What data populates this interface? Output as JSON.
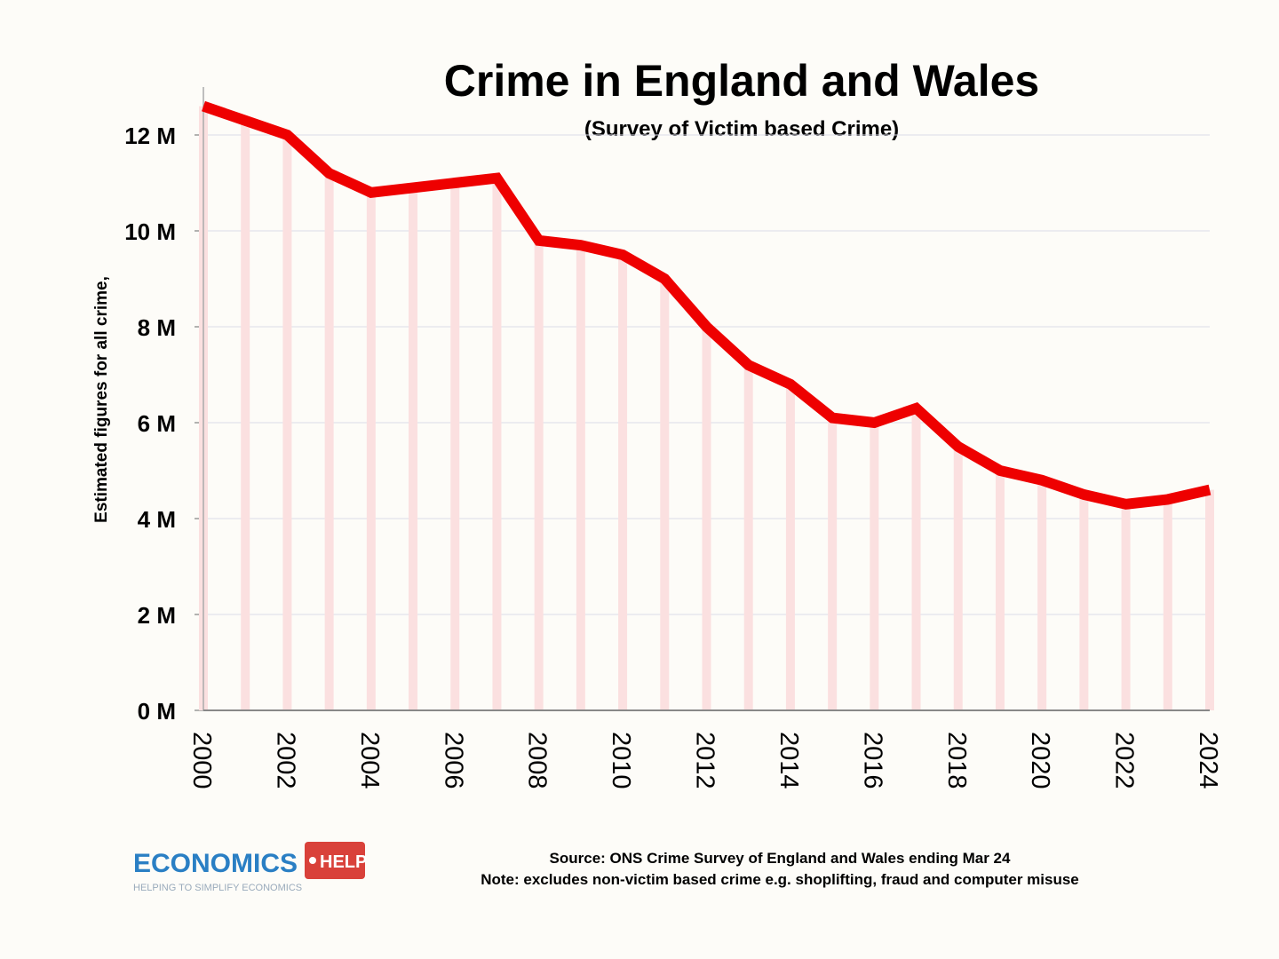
{
  "chart_data": {
    "type": "line",
    "title": "Crime in England and Wales",
    "subtitle": "(Survey of Victim based Crime)",
    "y_label": "Estimated figures for all crime,",
    "x": [
      2000,
      2001,
      2002,
      2003,
      2004,
      2005,
      2006,
      2007,
      2008,
      2009,
      2010,
      2011,
      2012,
      2013,
      2014,
      2015,
      2016,
      2017,
      2018,
      2019,
      2020,
      2021,
      2022,
      2023,
      2024
    ],
    "series": [
      {
        "color": "#ee0000",
        "values": [
          12.6,
          12.3,
          12.0,
          11.2,
          10.8,
          10.9,
          11.0,
          11.1,
          9.8,
          9.7,
          9.5,
          9.0,
          8.0,
          7.2,
          6.8,
          6.1,
          6.0,
          6.3,
          5.5,
          5.0,
          4.8,
          4.5,
          4.3,
          4.4,
          4.6
        ]
      }
    ],
    "drop_bar_color": "#fbe0e0",
    "xlim": [
      2000,
      2024
    ],
    "xticks": [
      2000,
      2002,
      2004,
      2006,
      2008,
      2010,
      2012,
      2014,
      2016,
      2018,
      2020,
      2022,
      2024
    ],
    "ylim": [
      0,
      13
    ],
    "yticks": [
      {
        "value": 0,
        "label": "0 M"
      },
      {
        "value": 2,
        "label": "2 M"
      },
      {
        "value": 4,
        "label": "4 M"
      },
      {
        "value": 6,
        "label": "6 M"
      },
      {
        "value": 8,
        "label": "8 M"
      },
      {
        "value": 10,
        "label": "10 M"
      },
      {
        "value": 12,
        "label": "12 M"
      }
    ],
    "grid": true
  },
  "logo": {
    "name": "ECONOMICS",
    "badge": "HELP",
    "tagline": "HELPING TO SIMPLIFY ECONOMICS"
  },
  "source": "Source: ONS Crime Survey of England and Wales ending Mar 24",
  "note": "Note: excludes non-victim based crime e.g. shoplifting, fraud and computer misuse"
}
